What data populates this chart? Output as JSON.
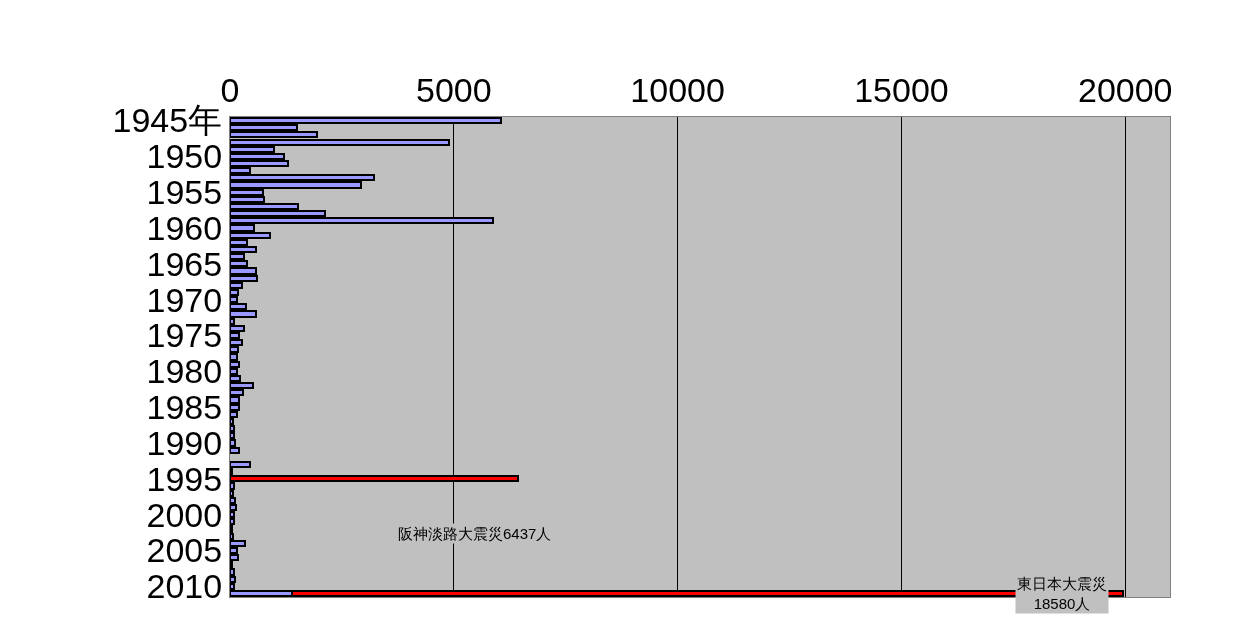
{
  "chart_data": {
    "type": "bar",
    "orientation": "horizontal",
    "stacked": true,
    "categories": [
      "1945年",
      null,
      null,
      null,
      null,
      "1950",
      null,
      null,
      null,
      null,
      "1955",
      null,
      null,
      null,
      null,
      "1960",
      null,
      null,
      null,
      null,
      "1965",
      null,
      null,
      null,
      null,
      "1970",
      null,
      null,
      null,
      null,
      "1975",
      null,
      null,
      null,
      null,
      "1980",
      null,
      null,
      null,
      null,
      "1985",
      null,
      null,
      null,
      null,
      "1990",
      null,
      null,
      null,
      null,
      "1995",
      null,
      null,
      null,
      null,
      "2000",
      null,
      null,
      null,
      null,
      "2005",
      null,
      null,
      null,
      null,
      "2010",
      null
    ],
    "series": [
      {
        "color": "#9999ff",
        "values": [
          6060,
          1500,
          1950,
          4900,
          980,
          1210,
          1290,
          450,
          3210,
          2930,
          730,
          770,
          1520,
          2120,
          5870,
          530,
          900,
          380,
          580,
          310,
          370,
          580,
          610,
          260,
          180,
          160,
          350,
          590,
          90,
          320,
          210,
          270,
          170,
          150,
          210,
          150,
          230,
          520,
          300,
          200,
          200,
          150,
          70,
          90,
          100,
          120,
          190,
          null,
          440,
          40,
          null,
          80,
          70,
          110,
          140,
          80,
          90,
          50,
          60,
          330,
          150,
          180,
          40,
          100,
          120,
          90,
          1380
        ]
      },
      {
        "color": "#ff0000",
        "values": [
          null,
          null,
          null,
          null,
          null,
          null,
          null,
          null,
          null,
          null,
          null,
          null,
          null,
          null,
          null,
          null,
          null,
          null,
          null,
          null,
          null,
          null,
          null,
          null,
          null,
          null,
          null,
          null,
          null,
          null,
          null,
          null,
          null,
          null,
          null,
          null,
          null,
          null,
          null,
          null,
          null,
          null,
          null,
          null,
          null,
          null,
          null,
          null,
          null,
          null,
          6437,
          null,
          null,
          null,
          null,
          null,
          null,
          null,
          null,
          null,
          null,
          null,
          null,
          null,
          null,
          null,
          18580
        ]
      }
    ],
    "xlim": [
      0,
      21000
    ],
    "xticks": [
      0,
      5000,
      10000,
      15000,
      20000
    ],
    "grid": "x",
    "annotations": [
      {
        "text": "阪神淡路大震災6437人",
        "x": 6437,
        "y": "1995"
      },
      {
        "text": "東日本大震災\n18580人",
        "x": 18580
      }
    ]
  }
}
